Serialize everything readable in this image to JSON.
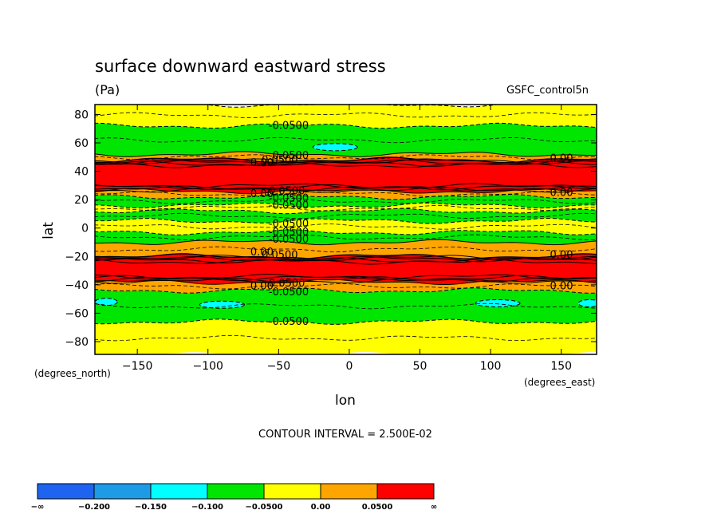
{
  "chart_data": {
    "type": "heatmap",
    "title": "surface downward eastward stress",
    "subtitle_units": "(Pa)",
    "dataset": "GSFC_control5n",
    "xlabel": "lon",
    "ylabel": "lat",
    "x_units": "(degrees_east)",
    "y_units": "(degrees_north)",
    "xlim": [
      -180,
      175
    ],
    "ylim": [
      -89,
      87
    ],
    "x_ticks": [
      -150,
      -100,
      -50,
      0,
      50,
      100,
      150
    ],
    "y_ticks": [
      80,
      60,
      40,
      20,
      0,
      -20,
      -40,
      -60,
      -80
    ],
    "contour_interval_text": "CONTOUR INTERVAL = 2.500E-02",
    "colorbar": {
      "levels": [
        "-∞",
        "-0.200",
        "-0.150",
        "-0.100",
        "-0.0500",
        "0.00",
        "0.0500",
        "∞"
      ],
      "colors": [
        "#1e64f0",
        "#1e9be6",
        "#00ffff",
        "#00e600",
        "#ffff00",
        "#ffa500",
        "#ff0000"
      ]
    },
    "zonal_bands": [
      {
        "lat_min": 72,
        "lat_max": 87,
        "value_range": [
          -0.05,
          0.0
        ]
      },
      {
        "lat_min": 52,
        "lat_max": 72,
        "value_range": [
          -0.1,
          -0.05
        ]
      },
      {
        "lat_min": 48,
        "lat_max": 52,
        "value_range": [
          -0.05,
          0.05
        ]
      },
      {
        "lat_min": 26,
        "lat_max": 48,
        "value_range": [
          0.05,
          0.3
        ]
      },
      {
        "lat_min": 22,
        "lat_max": 26,
        "value_range": [
          -0.05,
          0.05
        ]
      },
      {
        "lat_min": 16,
        "lat_max": 22,
        "value_range": [
          -0.1,
          -0.05
        ]
      },
      {
        "lat_min": 12,
        "lat_max": 16,
        "value_range": [
          -0.05,
          0.0
        ]
      },
      {
        "lat_min": 5,
        "lat_max": 12,
        "value_range": [
          -0.1,
          -0.05
        ]
      },
      {
        "lat_min": -3,
        "lat_max": 5,
        "value_range": [
          -0.05,
          0.0
        ]
      },
      {
        "lat_min": -10,
        "lat_max": -3,
        "value_range": [
          -0.1,
          -0.05
        ]
      },
      {
        "lat_min": -20,
        "lat_max": -10,
        "value_range": [
          -0.05,
          0.05
        ]
      },
      {
        "lat_min": -38,
        "lat_max": -20,
        "value_range": [
          0.05,
          0.3
        ]
      },
      {
        "lat_min": -44,
        "lat_max": -38,
        "value_range": [
          -0.05,
          0.05
        ]
      },
      {
        "lat_min": -66,
        "lat_max": -44,
        "value_range": [
          -0.1,
          -0.05
        ]
      },
      {
        "lat_min": -89,
        "lat_max": -66,
        "value_range": [
          -0.05,
          0.0
        ]
      }
    ],
    "local_minima_patches": [
      {
        "lon_center": -10,
        "lat_center": 57,
        "value_range": [
          -0.15,
          -0.1
        ]
      },
      {
        "lon_center": -172,
        "lat_center": -52,
        "value_range": [
          -0.15,
          -0.1
        ]
      },
      {
        "lon_center": -90,
        "lat_center": -54,
        "value_range": [
          -0.15,
          -0.1
        ]
      },
      {
        "lon_center": 105,
        "lat_center": -53,
        "value_range": [
          -0.15,
          -0.1
        ]
      },
      {
        "lon_center": 170,
        "lat_center": -53,
        "value_range": [
          -0.15,
          -0.1
        ]
      }
    ],
    "contour_labels": [
      {
        "text": "-0.0500",
        "lon": -57,
        "lat": 72
      },
      {
        "text": "-0.0500",
        "lon": -57,
        "lat": 51
      },
      {
        "text": "0.0500",
        "lon": -62,
        "lat": 48
      },
      {
        "text": "0.00",
        "lon": -70,
        "lat": 46
      },
      {
        "text": "0.0500",
        "lon": -57,
        "lat": 26
      },
      {
        "text": "-0.0500",
        "lon": -57,
        "lat": 21
      },
      {
        "text": "0.00",
        "lon": -70,
        "lat": 24
      },
      {
        "text": "-0.0500",
        "lon": -57,
        "lat": 16
      },
      {
        "text": "-0.0500",
        "lon": -57,
        "lat": 3
      },
      {
        "text": "-0.0500",
        "lon": -57,
        "lat": -3
      },
      {
        "text": "-0.0500",
        "lon": -57,
        "lat": -8
      },
      {
        "text": "0.0500",
        "lon": -62,
        "lat": -19
      },
      {
        "text": "0.00",
        "lon": -70,
        "lat": -17
      },
      {
        "text": "0.0500",
        "lon": -57,
        "lat": -39
      },
      {
        "text": "0.00",
        "lon": -70,
        "lat": -41
      },
      {
        "text": "-0.0500",
        "lon": -57,
        "lat": -45
      },
      {
        "text": "-0.0500",
        "lon": -57,
        "lat": -66
      },
      {
        "text": "0.00",
        "lon": 142,
        "lat": 49
      },
      {
        "text": "0.00",
        "lon": 142,
        "lat": 25
      },
      {
        "text": "0.00",
        "lon": 142,
        "lat": -19
      },
      {
        "text": "0.00",
        "lon": 142,
        "lat": -41
      }
    ]
  }
}
